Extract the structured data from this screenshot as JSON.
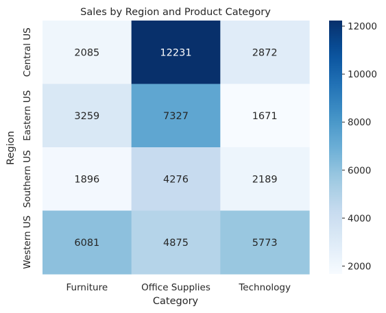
{
  "chart_data": {
    "type": "heatmap",
    "title": "Sales by Region and Product Category",
    "xlabel": "Category",
    "ylabel": "Region",
    "x_categories": [
      "Furniture",
      "Office Supplies",
      "Technology"
    ],
    "y_categories": [
      "Central US",
      "Eastern US",
      "Southern US",
      "Western US"
    ],
    "values": [
      [
        2085,
        12231,
        2872
      ],
      [
        3259,
        7327,
        1671
      ],
      [
        1896,
        4276,
        2189
      ],
      [
        6081,
        4875,
        5773
      ]
    ],
    "colorbar": {
      "range": [
        1671,
        12231
      ],
      "ticks": [
        2000,
        4000,
        6000,
        8000,
        10000,
        12000
      ],
      "colormap": "Blues"
    },
    "grid": false
  }
}
